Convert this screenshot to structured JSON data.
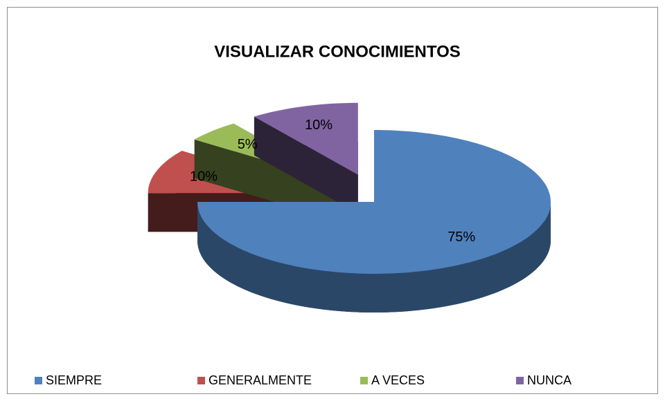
{
  "chart_data": {
    "type": "pie3d",
    "title": "VISUALIZAR CONOCIMIENTOS",
    "categories": [
      "SIEMPRE",
      "GENERALMENTE",
      "A VECES",
      "NUNCA"
    ],
    "values": [
      75,
      10,
      5,
      10
    ],
    "value_labels": [
      "75%",
      "10%",
      "5%",
      "10%"
    ],
    "colors": [
      "#4f81bd",
      "#c0504d",
      "#9bbb59",
      "#8064a2"
    ],
    "legend": "bottom"
  }
}
